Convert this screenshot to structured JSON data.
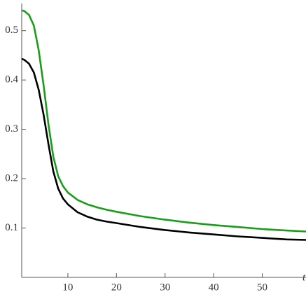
{
  "chart_data": {
    "type": "line",
    "x_label": "t",
    "x": [
      0.5,
      1,
      2,
      3,
      4,
      5,
      6,
      7,
      8,
      9,
      10,
      12,
      14,
      16,
      18,
      20,
      25,
      30,
      35,
      40,
      45,
      50,
      55,
      59
    ],
    "series": [
      {
        "color": "#1a9e1a",
        "values": [
          0.541,
          0.54,
          0.532,
          0.51,
          0.46,
          0.39,
          0.31,
          0.245,
          0.205,
          0.185,
          0.172,
          0.157,
          0.148,
          0.142,
          0.137,
          0.133,
          0.124,
          0.117,
          0.111,
          0.106,
          0.102,
          0.098,
          0.095,
          0.093
        ]
      },
      {
        "color": "#000000",
        "values": [
          0.443,
          0.441,
          0.433,
          0.415,
          0.38,
          0.33,
          0.27,
          0.215,
          0.18,
          0.16,
          0.148,
          0.132,
          0.123,
          0.117,
          0.113,
          0.11,
          0.102,
          0.096,
          0.091,
          0.087,
          0.083,
          0.08,
          0.077,
          0.076
        ]
      }
    ],
    "xlim": [
      0.5,
      59
    ],
    "ylim": [
      0,
      0.555
    ],
    "xticks": [
      10,
      20,
      30,
      40,
      50
    ],
    "yticks": [
      0.1,
      0.2,
      0.3,
      0.4,
      0.5
    ],
    "grid": false
  }
}
